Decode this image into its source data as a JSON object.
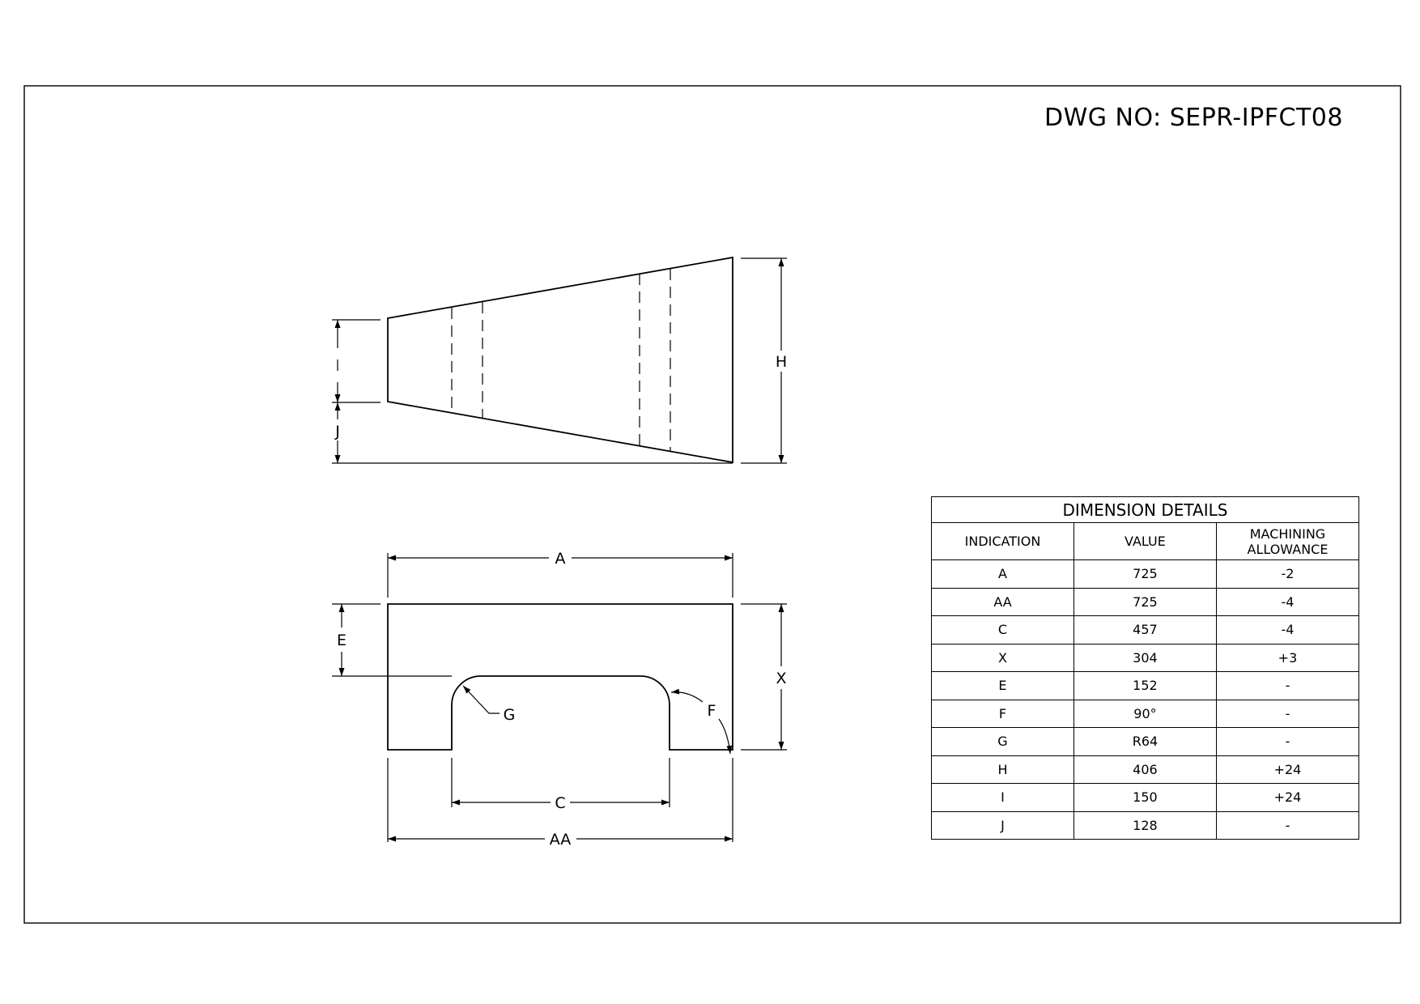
{
  "drawing_number": "DWG NO: SEPR-IPFCT08",
  "top_view_labels": {
    "h": "H",
    "j": "J"
  },
  "front_view_labels": {
    "a": "A",
    "aa": "AA",
    "c": "C",
    "e": "E",
    "x": "X",
    "f": "F",
    "g": "G"
  },
  "dimension_table": {
    "caption": "DIMENSION DETAILS",
    "headers": {
      "indication": "INDICATION",
      "value": "VALUE",
      "allowance_line1": "MACHINING",
      "allowance_line2": "ALLOWANCE"
    },
    "rows": [
      {
        "indication": "A",
        "value": "725",
        "allowance": "-2"
      },
      {
        "indication": "AA",
        "value": "725",
        "allowance": "-4"
      },
      {
        "indication": "C",
        "value": "457",
        "allowance": "-4"
      },
      {
        "indication": "X",
        "value": "304",
        "allowance": "+3"
      },
      {
        "indication": "E",
        "value": "152",
        "allowance": "-"
      },
      {
        "indication": "F",
        "value": "90°",
        "allowance": "-"
      },
      {
        "indication": "G",
        "value": "R64",
        "allowance": "-"
      },
      {
        "indication": "H",
        "value": "406",
        "allowance": "+24"
      },
      {
        "indication": "I",
        "value": "150",
        "allowance": "+24"
      },
      {
        "indication": "J",
        "value": "128",
        "allowance": "-"
      }
    ]
  }
}
